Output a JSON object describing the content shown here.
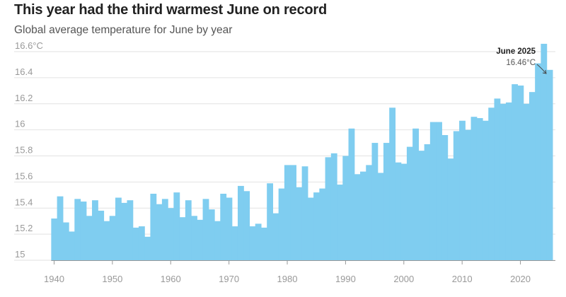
{
  "chart_data": {
    "type": "area",
    "title": "This year had the third warmest June on record",
    "subtitle": "Global average temperature for June by year",
    "x_ticks": [
      "1940",
      "1950",
      "1960",
      "1970",
      "1980",
      "1990",
      "2000",
      "2010",
      "2020"
    ],
    "y_ticks": [
      "15",
      "15.2",
      "15.4",
      "15.6",
      "15.8",
      "16",
      "16.2",
      "16.4",
      "16.6°C"
    ],
    "xlim": [
      1938,
      2026
    ],
    "ylim": [
      15,
      16.6
    ],
    "grid": true,
    "color": "#7fcdf0",
    "series": [
      {
        "x": [
          1940,
          1941,
          1942,
          1943,
          1944,
          1945,
          1946,
          1947,
          1948,
          1949,
          1950,
          1951,
          1952,
          1953,
          1954,
          1955,
          1956,
          1957,
          1958,
          1959,
          1960,
          1961,
          1962,
          1963,
          1964,
          1965,
          1966,
          1967,
          1968,
          1969,
          1970,
          1971,
          1972,
          1973,
          1974,
          1975,
          1976,
          1977,
          1978,
          1979,
          1980,
          1981,
          1982,
          1983,
          1984,
          1985,
          1986,
          1987,
          1988,
          1989,
          1990,
          1991,
          1992,
          1993,
          1994,
          1995,
          1996,
          1997,
          1998,
          1999,
          2000,
          2001,
          2002,
          2003,
          2004,
          2005,
          2006,
          2007,
          2008,
          2009,
          2010,
          2011,
          2012,
          2013,
          2014,
          2015,
          2016,
          2017,
          2018,
          2019,
          2020,
          2021,
          2022,
          2023,
          2024,
          2025
        ],
        "values": [
          15.32,
          15.49,
          15.29,
          15.22,
          15.47,
          15.45,
          15.34,
          15.46,
          15.38,
          15.3,
          15.34,
          15.48,
          15.44,
          15.46,
          15.25,
          15.26,
          15.18,
          15.51,
          15.43,
          15.47,
          15.4,
          15.52,
          15.33,
          15.46,
          15.34,
          15.31,
          15.47,
          15.39,
          15.3,
          15.51,
          15.48,
          15.26,
          15.57,
          15.53,
          15.26,
          15.28,
          15.25,
          15.59,
          15.36,
          15.55,
          15.73,
          15.73,
          15.56,
          15.72,
          15.48,
          15.52,
          15.55,
          15.79,
          15.82,
          15.58,
          15.8,
          16.01,
          15.66,
          15.68,
          15.73,
          15.9,
          15.67,
          15.9,
          16.17,
          15.75,
          15.74,
          15.87,
          16.01,
          15.84,
          15.89,
          16.06,
          16.06,
          15.96,
          15.78,
          15.99,
          16.07,
          16.0,
          16.1,
          16.09,
          16.07,
          16.17,
          16.24,
          16.2,
          16.21,
          16.35,
          16.34,
          16.2,
          16.29,
          16.51,
          16.66,
          16.46
        ]
      }
    ],
    "annotation": {
      "label": "June 2025",
      "value": "16.46°C",
      "year": 2025,
      "temperature": 16.46
    }
  }
}
